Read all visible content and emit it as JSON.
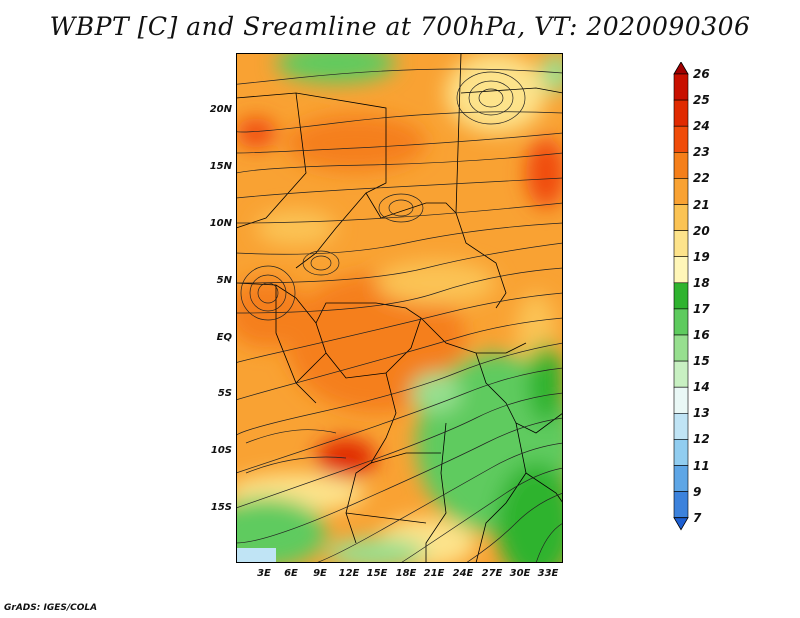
{
  "title": "WBPT [C] and Sreamline at 700hPa, VT: 2020090306",
  "credit": "GrADS: IGES/COLA",
  "lat_ticks": [
    "20N",
    "15N",
    "10N",
    "5N",
    "EQ",
    "5S",
    "10S",
    "15S"
  ],
  "lon_ticks": [
    "3E",
    "6E",
    "9E",
    "12E",
    "15E",
    "18E",
    "21E",
    "24E",
    "27E",
    "30E",
    "33E"
  ],
  "colorbar": {
    "labels": [
      "26",
      "25",
      "24",
      "23",
      "22",
      "21",
      "20",
      "19",
      "18",
      "17",
      "16",
      "15",
      "14",
      "13",
      "12",
      "11",
      "9",
      "7"
    ],
    "colors": [
      "#a00000",
      "#c81000",
      "#e02a00",
      "#f04c0a",
      "#f57f1a",
      "#f9a233",
      "#fbc354",
      "#fde38b",
      "#fff6b8",
      "#2fb32f",
      "#5ecb5e",
      "#97df8f",
      "#c8f0c2",
      "#eaf8f6",
      "#c0e4f5",
      "#91cdf0",
      "#5ea6e6",
      "#3c82dc",
      "#1c5fd2"
    ]
  }
}
